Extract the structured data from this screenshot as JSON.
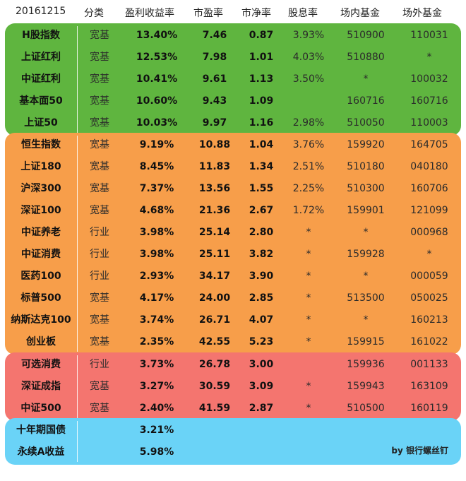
{
  "header": {
    "date": "20161215",
    "category": "分类",
    "yield": "盈利收益率",
    "pe": "市盈率",
    "pb": "市净率",
    "dividend": "股息率",
    "exchange_fund": "场内基金",
    "otc_fund": "场外基金"
  },
  "colors": {
    "green": "#5fb53f",
    "orange": "#f79e4a",
    "red": "#f4756f",
    "blue": "#6ad3f7"
  },
  "groups": [
    {
      "color": "#5fb53f",
      "rows": [
        {
          "name": "H股指数",
          "category": "宽基",
          "yield": "13.40%",
          "pe": "7.46",
          "pb": "0.87",
          "dividend": "3.93%",
          "exchange": "510900",
          "otc": "110031"
        },
        {
          "name": "上证红利",
          "category": "宽基",
          "yield": "12.53%",
          "pe": "7.98",
          "pb": "1.01",
          "dividend": "4.03%",
          "exchange": "510880",
          "otc": "*"
        },
        {
          "name": "中证红利",
          "category": "宽基",
          "yield": "10.41%",
          "pe": "9.61",
          "pb": "1.13",
          "dividend": "3.50%",
          "exchange": "*",
          "otc": "100032"
        },
        {
          "name": "基本面50",
          "category": "宽基",
          "yield": "10.60%",
          "pe": "9.43",
          "pb": "1.09",
          "dividend": "",
          "exchange": "160716",
          "otc": "160716"
        },
        {
          "name": "上证50",
          "category": "宽基",
          "yield": "10.03%",
          "pe": "9.97",
          "pb": "1.16",
          "dividend": "2.98%",
          "exchange": "510050",
          "otc": "110003"
        }
      ]
    },
    {
      "color": "#f79e4a",
      "rows": [
        {
          "name": "恒生指数",
          "category": "宽基",
          "yield": "9.19%",
          "pe": "10.88",
          "pb": "1.04",
          "dividend": "3.76%",
          "exchange": "159920",
          "otc": "164705"
        },
        {
          "name": "上证180",
          "category": "宽基",
          "yield": "8.45%",
          "pe": "11.83",
          "pb": "1.34",
          "dividend": "2.51%",
          "exchange": "510180",
          "otc": "040180"
        },
        {
          "name": "沪深300",
          "category": "宽基",
          "yield": "7.37%",
          "pe": "13.56",
          "pb": "1.55",
          "dividend": "2.25%",
          "exchange": "510300",
          "otc": "160706"
        },
        {
          "name": "深证100",
          "category": "宽基",
          "yield": "4.68%",
          "pe": "21.36",
          "pb": "2.67",
          "dividend": "1.72%",
          "exchange": "159901",
          "otc": "121099"
        },
        {
          "name": "中证养老",
          "category": "行业",
          "yield": "3.98%",
          "pe": "25.14",
          "pb": "2.80",
          "dividend": "*",
          "exchange": "*",
          "otc": "000968"
        },
        {
          "name": "中证消费",
          "category": "行业",
          "yield": "3.98%",
          "pe": "25.11",
          "pb": "3.82",
          "dividend": "*",
          "exchange": "159928",
          "otc": "*"
        },
        {
          "name": "医药100",
          "category": "行业",
          "yield": "2.93%",
          "pe": "34.17",
          "pb": "3.90",
          "dividend": "*",
          "exchange": "*",
          "otc": "000059"
        },
        {
          "name": "标普500",
          "category": "宽基",
          "yield": "4.17%",
          "pe": "24.00",
          "pb": "2.85",
          "dividend": "*",
          "exchange": "513500",
          "otc": "050025"
        },
        {
          "name": "纳斯达克100",
          "category": "宽基",
          "yield": "3.74%",
          "pe": "26.71",
          "pb": "4.07",
          "dividend": "*",
          "exchange": "*",
          "otc": "160213"
        },
        {
          "name": "创业板",
          "category": "宽基",
          "yield": "2.35%",
          "pe": "42.55",
          "pb": "5.23",
          "dividend": "*",
          "exchange": "159915",
          "otc": "161022"
        }
      ]
    },
    {
      "color": "#f4756f",
      "rows": [
        {
          "name": "可选消费",
          "category": "行业",
          "yield": "3.73%",
          "pe": "26.78",
          "pb": "3.00",
          "dividend": "",
          "exchange": "159936",
          "otc": "001133"
        },
        {
          "name": "深证成指",
          "category": "宽基",
          "yield": "3.27%",
          "pe": "30.59",
          "pb": "3.09",
          "dividend": "*",
          "exchange": "159943",
          "otc": "163109"
        },
        {
          "name": "中证500",
          "category": "宽基",
          "yield": "2.40%",
          "pe": "41.59",
          "pb": "2.87",
          "dividend": "*",
          "exchange": "510500",
          "otc": "160119"
        }
      ]
    },
    {
      "color": "#6ad3f7",
      "rows": [
        {
          "name": "十年期国债",
          "category": "",
          "yield": "3.21%",
          "pe": "",
          "pb": "",
          "dividend": "",
          "exchange": "",
          "otc": ""
        },
        {
          "name": "永续A收益",
          "category": "",
          "yield": "5.98%",
          "pe": "",
          "pb": "",
          "dividend": "",
          "exchange": "",
          "otc": ""
        }
      ]
    }
  ],
  "credit": "by 银行螺丝钉"
}
